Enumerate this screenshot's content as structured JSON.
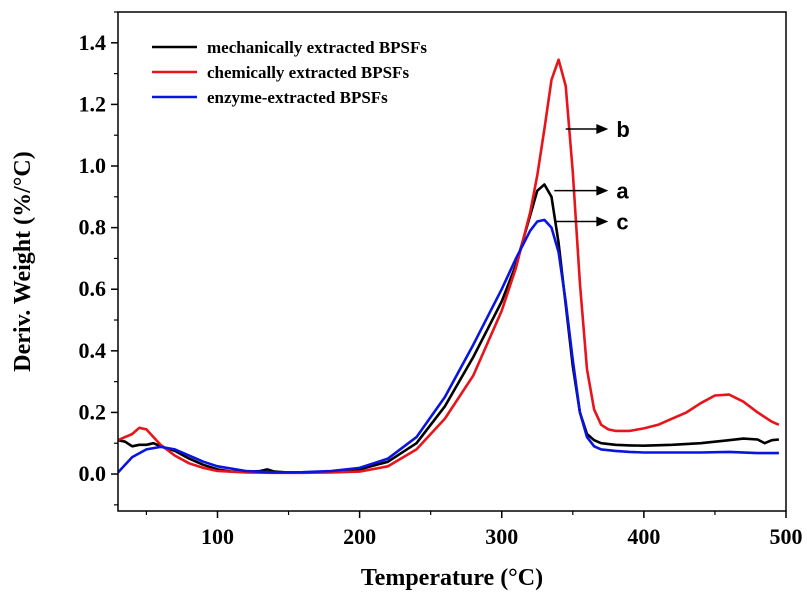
{
  "chart_data": {
    "type": "line",
    "xlabel": "Temperature (°C)",
    "ylabel": "Deriv. Weight (%/°C)",
    "xlim": [
      30,
      500
    ],
    "ylim": [
      -0.12,
      1.5
    ],
    "xticks": [
      100,
      200,
      300,
      400,
      500
    ],
    "xtick_labels": [
      "100",
      "200",
      "300",
      "400",
      "500"
    ],
    "yticks": [
      0.0,
      0.2,
      0.4,
      0.6,
      0.8,
      1.0,
      1.2,
      1.4
    ],
    "ytick_labels": [
      "0.0",
      "0.2",
      "0.4",
      "0.6",
      "0.8",
      "1.0",
      "1.2",
      "1.4"
    ],
    "grid": false,
    "legend_position": "top-left",
    "series": [
      {
        "name": "mechanically extracted BPSFs",
        "color": "#000000",
        "x": [
          30,
          35,
          40,
          45,
          50,
          55,
          60,
          70,
          80,
          90,
          100,
          110,
          120,
          130,
          135,
          140,
          150,
          160,
          180,
          200,
          220,
          240,
          260,
          280,
          290,
          300,
          310,
          320,
          325,
          330,
          335,
          340,
          345,
          350,
          355,
          360,
          365,
          370,
          380,
          390,
          400,
          420,
          440,
          460,
          470,
          480,
          485,
          490,
          495
        ],
        "y": [
          0.11,
          0.105,
          0.09,
          0.095,
          0.095,
          0.1,
          0.09,
          0.075,
          0.05,
          0.03,
          0.015,
          0.008,
          0.007,
          0.01,
          0.015,
          0.008,
          0.005,
          0.005,
          0.008,
          0.015,
          0.04,
          0.1,
          0.22,
          0.38,
          0.47,
          0.56,
          0.68,
          0.84,
          0.92,
          0.94,
          0.9,
          0.75,
          0.55,
          0.35,
          0.2,
          0.13,
          0.11,
          0.1,
          0.095,
          0.093,
          0.092,
          0.095,
          0.1,
          0.11,
          0.115,
          0.112,
          0.1,
          0.11,
          0.112
        ]
      },
      {
        "name": "chemically extracted BPSFs",
        "color": "#e8141b",
        "x": [
          30,
          35,
          40,
          45,
          50,
          55,
          60,
          70,
          80,
          90,
          100,
          120,
          140,
          160,
          180,
          200,
          220,
          240,
          260,
          280,
          300,
          310,
          320,
          325,
          330,
          335,
          340,
          345,
          350,
          355,
          360,
          365,
          370,
          375,
          380,
          390,
          400,
          410,
          420,
          430,
          440,
          450,
          460,
          470,
          480,
          490,
          495
        ],
        "y": [
          0.11,
          0.12,
          0.13,
          0.15,
          0.145,
          0.12,
          0.095,
          0.06,
          0.035,
          0.02,
          0.01,
          0.005,
          0.004,
          0.004,
          0.005,
          0.008,
          0.025,
          0.08,
          0.18,
          0.32,
          0.53,
          0.67,
          0.85,
          0.97,
          1.12,
          1.28,
          1.345,
          1.26,
          0.98,
          0.62,
          0.34,
          0.21,
          0.16,
          0.145,
          0.14,
          0.14,
          0.148,
          0.16,
          0.18,
          0.2,
          0.23,
          0.255,
          0.258,
          0.235,
          0.2,
          0.17,
          0.16
        ]
      },
      {
        "name": "enzyme-extracted BPSFs",
        "color": "#0a14e0",
        "x": [
          30,
          35,
          40,
          50,
          60,
          70,
          80,
          90,
          100,
          120,
          140,
          160,
          180,
          200,
          220,
          240,
          260,
          280,
          300,
          310,
          320,
          325,
          330,
          335,
          340,
          345,
          350,
          355,
          360,
          365,
          370,
          380,
          390,
          400,
          420,
          440,
          460,
          480,
          495
        ],
        "y": [
          0.005,
          0.03,
          0.055,
          0.08,
          0.088,
          0.08,
          0.06,
          0.04,
          0.025,
          0.01,
          0.005,
          0.006,
          0.01,
          0.02,
          0.05,
          0.12,
          0.25,
          0.42,
          0.6,
          0.7,
          0.79,
          0.82,
          0.825,
          0.8,
          0.72,
          0.56,
          0.37,
          0.2,
          0.12,
          0.09,
          0.08,
          0.075,
          0.072,
          0.07,
          0.07,
          0.07,
          0.072,
          0.068,
          0.068
        ]
      }
    ],
    "annotations": [
      {
        "text": "b",
        "arrow_from": [
          345,
          1.12
        ],
        "arrow_to": [
          375,
          1.12
        ]
      },
      {
        "text": "a",
        "arrow_from": [
          337,
          0.92
        ],
        "arrow_to": [
          375,
          0.92
        ]
      },
      {
        "text": "c",
        "arrow_from": [
          338,
          0.82
        ],
        "arrow_to": [
          375,
          0.82
        ]
      }
    ]
  }
}
